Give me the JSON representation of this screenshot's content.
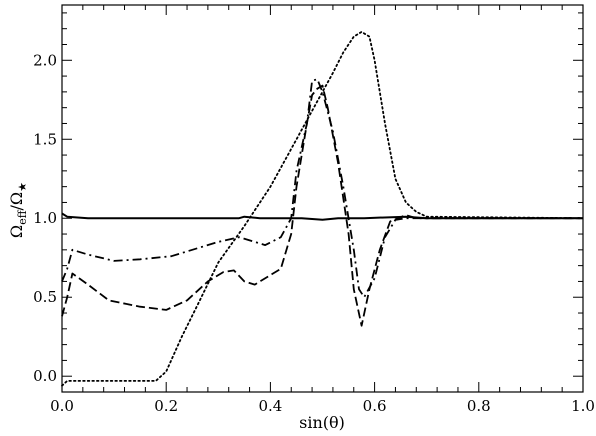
{
  "chart_data": {
    "type": "line",
    "xlabel": "sin(θ)",
    "ylabel": "Ω_eff/Ω_★",
    "xlim": [
      0.0,
      1.0
    ],
    "ylim": [
      -0.1,
      2.35
    ],
    "grid": false,
    "legend": "none",
    "x_ticks": [
      {
        "v": 0.0,
        "label": "0.0"
      },
      {
        "v": 0.2,
        "label": "0.2"
      },
      {
        "v": 0.4,
        "label": "0.4"
      },
      {
        "v": 0.6,
        "label": "0.6"
      },
      {
        "v": 0.8,
        "label": "0.8"
      },
      {
        "v": 1.0,
        "label": "1.0"
      }
    ],
    "y_ticks": [
      {
        "v": 0.0,
        "label": "0.0"
      },
      {
        "v": 0.5,
        "label": "0.5"
      },
      {
        "v": 1.0,
        "label": "1.0"
      },
      {
        "v": 1.5,
        "label": "1.5"
      },
      {
        "v": 2.0,
        "label": "2.0"
      }
    ],
    "series": [
      {
        "style": "solid",
        "points": [
          [
            0.0,
            1.03
          ],
          [
            0.01,
            1.01
          ],
          [
            0.05,
            1.0
          ],
          [
            0.2,
            1.0
          ],
          [
            0.34,
            1.0
          ],
          [
            0.35,
            1.01
          ],
          [
            0.38,
            1.0
          ],
          [
            0.45,
            1.0
          ],
          [
            0.46,
            1.0
          ],
          [
            0.5,
            0.99
          ],
          [
            0.53,
            1.0
          ],
          [
            0.58,
            1.0
          ],
          [
            0.66,
            1.01
          ],
          [
            0.7,
            1.0
          ],
          [
            1.0,
            1.0
          ]
        ]
      },
      {
        "style": "dashed",
        "points": [
          [
            0.0,
            0.38
          ],
          [
            0.01,
            0.5
          ],
          [
            0.02,
            0.65
          ],
          [
            0.05,
            0.58
          ],
          [
            0.09,
            0.48
          ],
          [
            0.15,
            0.44
          ],
          [
            0.2,
            0.42
          ],
          [
            0.24,
            0.48
          ],
          [
            0.28,
            0.6
          ],
          [
            0.31,
            0.66
          ],
          [
            0.33,
            0.67
          ],
          [
            0.35,
            0.6
          ],
          [
            0.37,
            0.58
          ],
          [
            0.38,
            0.6
          ],
          [
            0.42,
            0.68
          ],
          [
            0.44,
            0.9
          ],
          [
            0.45,
            1.2
          ],
          [
            0.47,
            1.6
          ],
          [
            0.48,
            1.78
          ],
          [
            0.49,
            1.82
          ],
          [
            0.5,
            1.84
          ],
          [
            0.51,
            1.7
          ],
          [
            0.53,
            1.35
          ],
          [
            0.55,
            0.9
          ],
          [
            0.56,
            0.55
          ],
          [
            0.575,
            0.32
          ],
          [
            0.59,
            0.55
          ],
          [
            0.61,
            0.8
          ],
          [
            0.63,
            0.98
          ],
          [
            0.66,
            1.02
          ],
          [
            0.68,
            1.0
          ],
          [
            1.0,
            1.0
          ]
        ]
      },
      {
        "style": "dashdot",
        "points": [
          [
            0.0,
            0.6
          ],
          [
            0.01,
            0.68
          ],
          [
            0.02,
            0.8
          ],
          [
            0.05,
            0.77
          ],
          [
            0.1,
            0.73
          ],
          [
            0.15,
            0.74
          ],
          [
            0.21,
            0.76
          ],
          [
            0.25,
            0.8
          ],
          [
            0.3,
            0.85
          ],
          [
            0.34,
            0.88
          ],
          [
            0.37,
            0.85
          ],
          [
            0.39,
            0.83
          ],
          [
            0.42,
            0.88
          ],
          [
            0.44,
            1.0
          ],
          [
            0.45,
            1.3
          ],
          [
            0.47,
            1.6
          ],
          [
            0.48,
            1.87
          ],
          [
            0.49,
            1.88
          ],
          [
            0.5,
            1.8
          ],
          [
            0.52,
            1.55
          ],
          [
            0.54,
            1.2
          ],
          [
            0.56,
            0.8
          ],
          [
            0.57,
            0.55
          ],
          [
            0.58,
            0.5
          ],
          [
            0.6,
            0.62
          ],
          [
            0.62,
            0.88
          ],
          [
            0.64,
            0.99
          ],
          [
            0.66,
            1.0
          ],
          [
            1.0,
            1.0
          ]
        ]
      },
      {
        "style": "dotted",
        "points": [
          [
            0.0,
            -0.06
          ],
          [
            0.01,
            -0.03
          ],
          [
            0.05,
            -0.03
          ],
          [
            0.1,
            -0.03
          ],
          [
            0.15,
            -0.03
          ],
          [
            0.18,
            -0.03
          ],
          [
            0.2,
            0.03
          ],
          [
            0.23,
            0.25
          ],
          [
            0.26,
            0.45
          ],
          [
            0.3,
            0.72
          ],
          [
            0.35,
            0.95
          ],
          [
            0.4,
            1.2
          ],
          [
            0.45,
            1.5
          ],
          [
            0.48,
            1.68
          ],
          [
            0.5,
            1.8
          ],
          [
            0.52,
            1.92
          ],
          [
            0.54,
            2.05
          ],
          [
            0.56,
            2.15
          ],
          [
            0.575,
            2.18
          ],
          [
            0.59,
            2.15
          ],
          [
            0.6,
            2.0
          ],
          [
            0.62,
            1.6
          ],
          [
            0.64,
            1.25
          ],
          [
            0.66,
            1.1
          ],
          [
            0.68,
            1.04
          ],
          [
            0.7,
            1.01
          ],
          [
            1.0,
            1.0
          ]
        ]
      }
    ]
  }
}
